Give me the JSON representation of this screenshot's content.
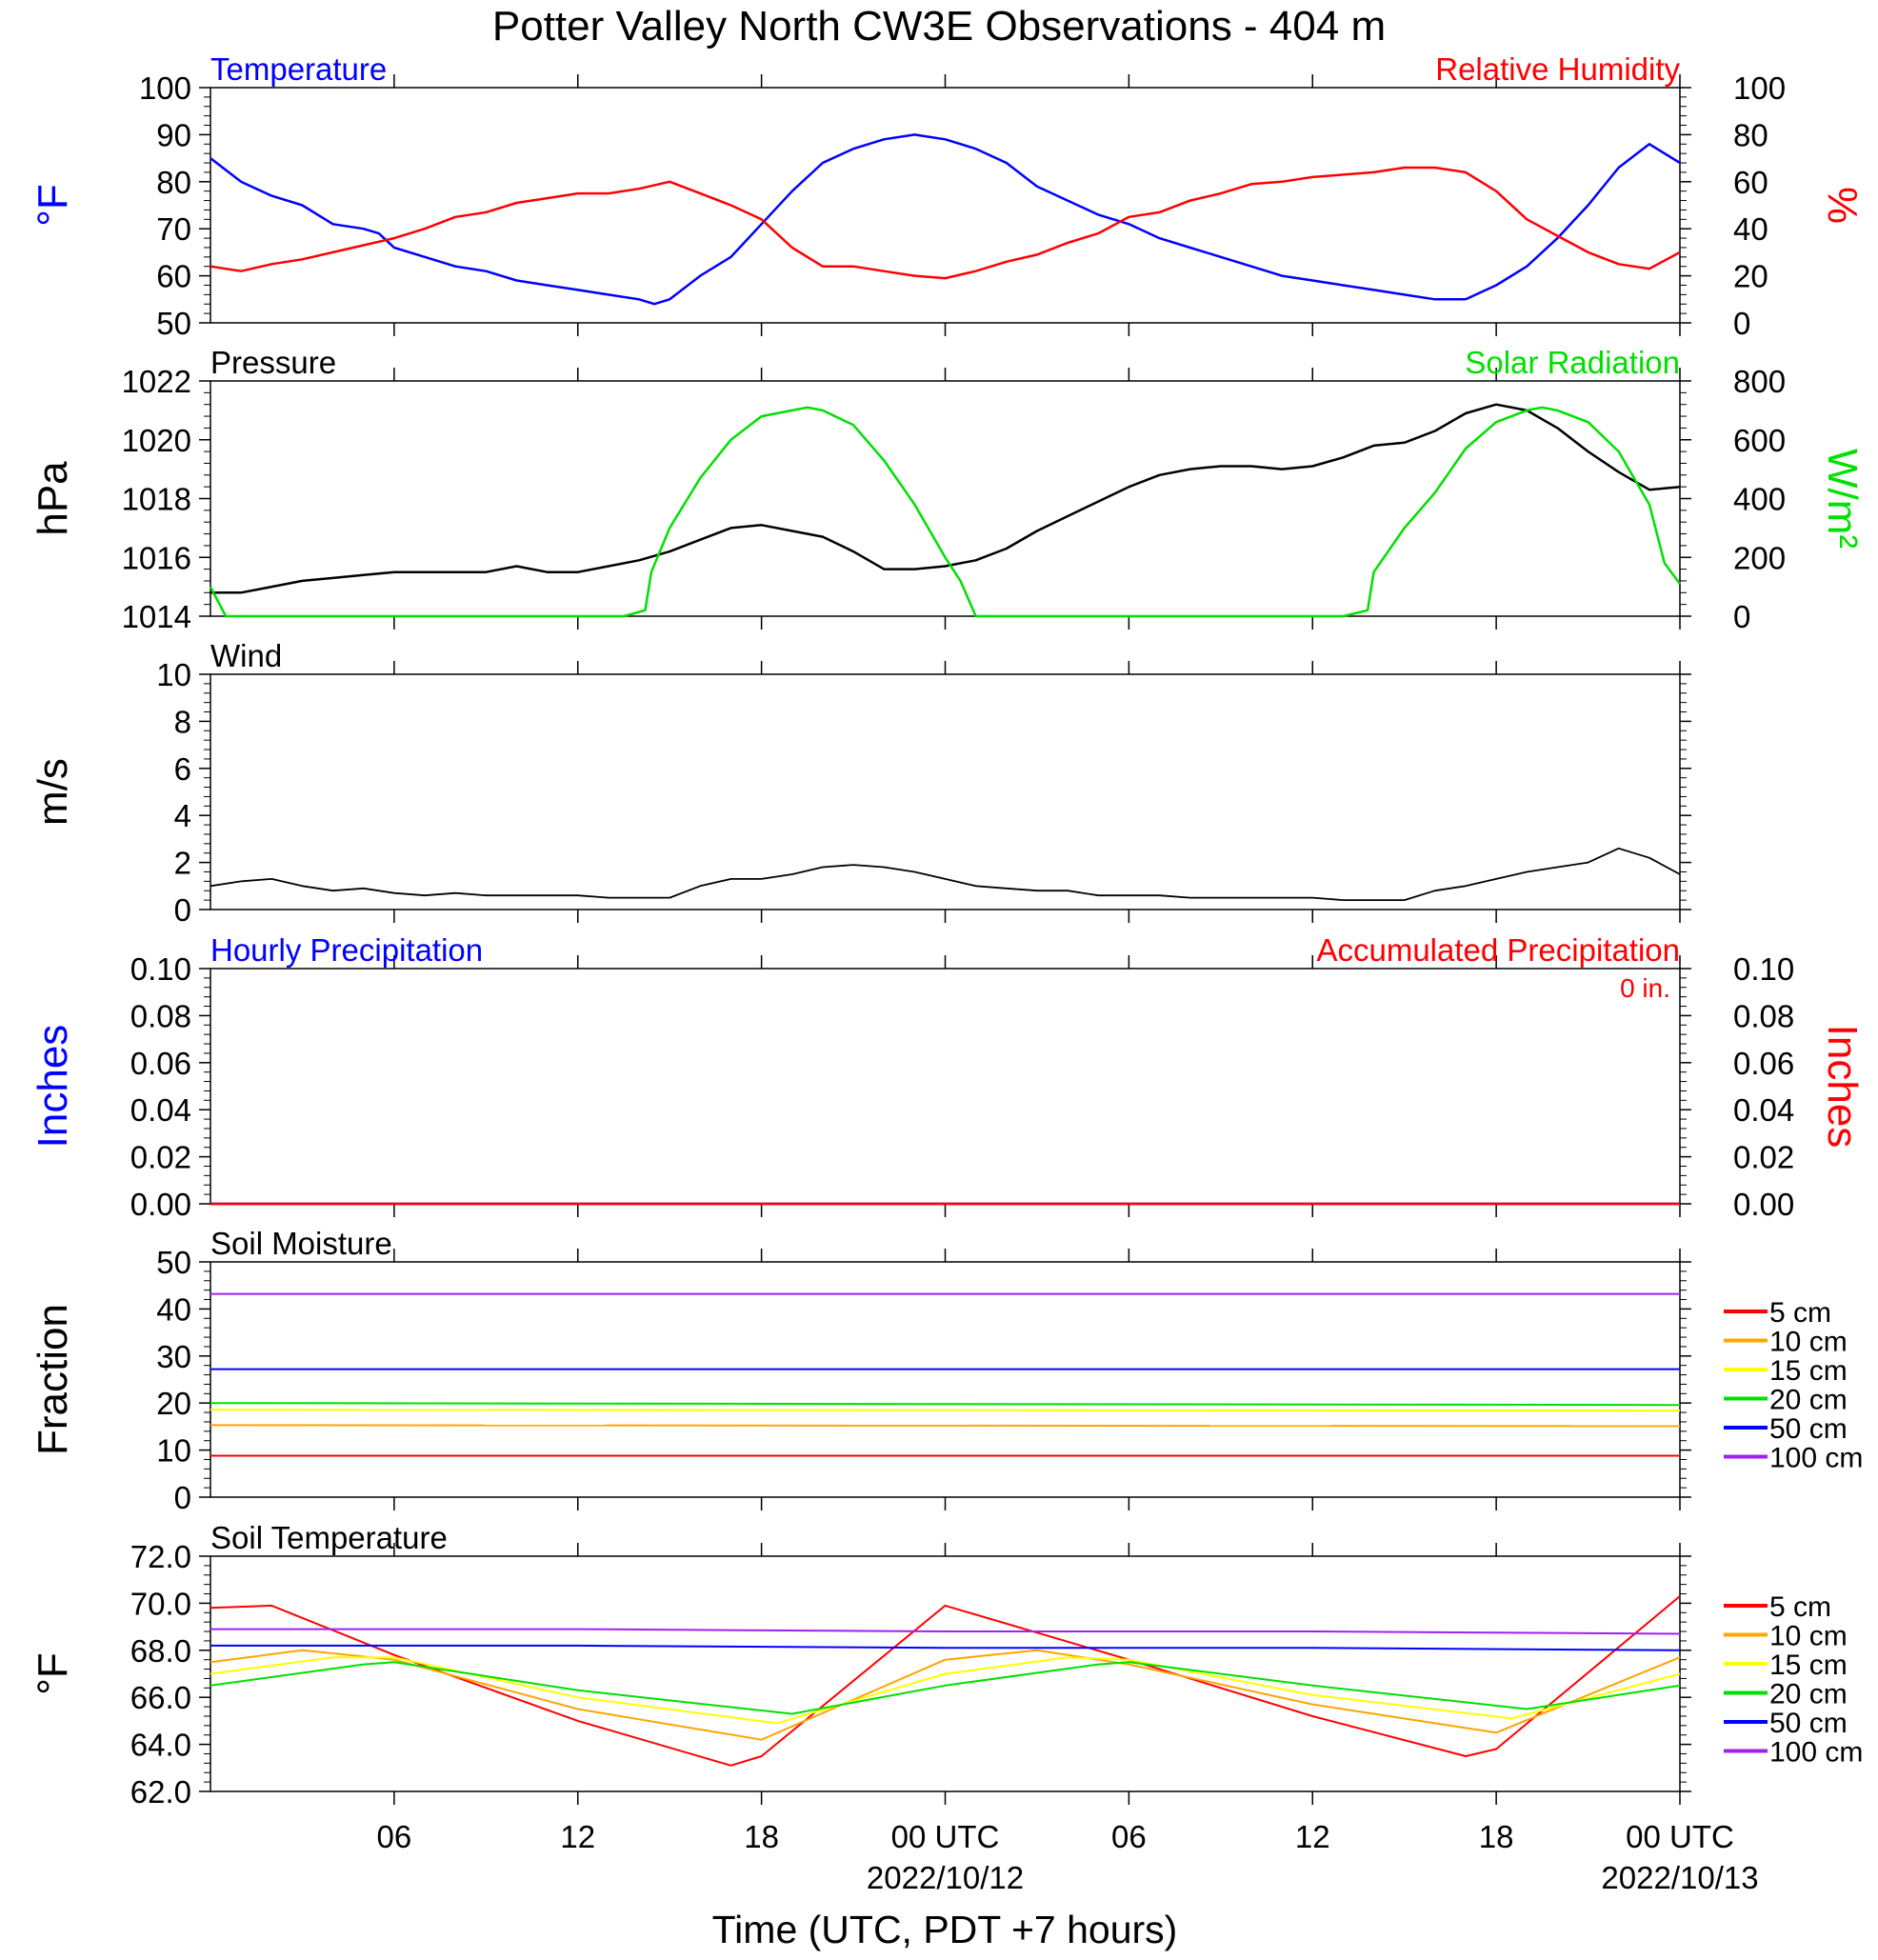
{
  "title": "Potter Valley North CW3E Observations - 404 m",
  "xaxis": {
    "title": "Time (UTC, PDT +7 hours)",
    "ticks": [
      {
        "hour": 6,
        "label": "06",
        "date": ""
      },
      {
        "hour": 12,
        "label": "12",
        "date": ""
      },
      {
        "hour": 18,
        "label": "18",
        "date": ""
      },
      {
        "hour": 24,
        "label": "00 UTC",
        "date": "2022/10/12"
      },
      {
        "hour": 30,
        "label": "06",
        "date": ""
      },
      {
        "hour": 36,
        "label": "12",
        "date": ""
      },
      {
        "hour": 42,
        "label": "18",
        "date": ""
      },
      {
        "hour": 48,
        "label": "00 UTC",
        "date": "2022/10/13"
      }
    ],
    "range_hours": [
      0,
      48
    ]
  },
  "colors": {
    "temperature": "#0000ff",
    "humidity": "#ff0000",
    "pressure": "#000000",
    "solar": "#00e000",
    "wind": "#000000",
    "wind_barb": "#ff0000",
    "hourly_precip": "#0000ff",
    "accum_precip": "#ff0000",
    "depth_5cm": "#ff0000",
    "depth_10cm": "#ffa500",
    "depth_15cm": "#ffff00",
    "depth_20cm": "#00e000",
    "depth_50cm": "#0000ff",
    "depth_100cm": "#a020f0"
  },
  "panels": {
    "temp_rh": {
      "left_title": "Temperature",
      "right_title": "Relative Humidity",
      "left_unit": "°F",
      "right_unit": "%",
      "left_ticks": [
        "50",
        "60",
        "70",
        "80",
        "90",
        "100"
      ],
      "right_ticks": [
        "0",
        "20",
        "40",
        "60",
        "80",
        "100"
      ]
    },
    "pressure_solar": {
      "left_title": "Pressure",
      "right_title": "Solar Radiation",
      "left_unit": "hPa",
      "right_unit": "W/m²",
      "left_ticks": [
        "1014",
        "1016",
        "1018",
        "1020",
        "1022"
      ],
      "right_ticks": [
        "0",
        "200",
        "400",
        "600",
        "800"
      ]
    },
    "wind": {
      "left_title": "Wind",
      "left_unit": "m/s",
      "left_ticks": [
        "0",
        "2",
        "4",
        "6",
        "8",
        "10"
      ]
    },
    "precip": {
      "left_title": "Hourly Precipitation",
      "right_title": "Accumulated Precipitation",
      "total": "0 in.",
      "left_unit": "Inches",
      "right_unit": "Inches",
      "left_ticks": [
        "0.00",
        "0.02",
        "0.04",
        "0.06",
        "0.08",
        "0.10"
      ],
      "right_ticks": [
        "0.00",
        "0.02",
        "0.04",
        "0.06",
        "0.08",
        "0.10"
      ]
    },
    "soil_moisture": {
      "left_title": "Soil Moisture",
      "left_unit": "Fraction",
      "left_ticks": [
        "0",
        "10",
        "20",
        "30",
        "40",
        "50"
      ]
    },
    "soil_temp": {
      "left_title": "Soil Temperature",
      "left_unit": "°F",
      "left_ticks": [
        "62.0",
        "64.0",
        "66.0",
        "68.0",
        "70.0",
        "72.0"
      ]
    }
  },
  "legend_labels": [
    "5 cm",
    "10 cm",
    "15 cm",
    "20 cm",
    "50 cm",
    "100 cm"
  ],
  "chart_data": [
    {
      "type": "line",
      "title": "Temperature",
      "ylabel": "°F",
      "ylim": [
        50,
        100
      ],
      "series": [
        {
          "name": "Temperature",
          "x": [
            0,
            1,
            2,
            3,
            4,
            5,
            5.5,
            6,
            7,
            8,
            9,
            10,
            11,
            12,
            13,
            14,
            14.5,
            15,
            16,
            17,
            18,
            19,
            20,
            21,
            22,
            23,
            24,
            25,
            26,
            27,
            28,
            29,
            30,
            31,
            32,
            33,
            34,
            35,
            36,
            37,
            38,
            39,
            40,
            41,
            42,
            43,
            44,
            45,
            46,
            47,
            48
          ],
          "y": [
            85,
            80,
            77,
            75,
            71,
            70,
            69,
            66,
            64,
            62,
            61,
            59,
            58,
            57,
            56,
            55,
            54,
            55,
            60,
            64,
            71,
            78,
            84,
            87,
            89,
            90,
            89,
            87,
            84,
            79,
            76,
            73,
            71,
            68,
            66,
            64,
            62,
            60,
            59,
            58,
            57,
            56,
            55,
            55,
            58,
            62,
            68,
            75,
            83,
            88,
            84
          ]
        }
      ]
    },
    {
      "type": "line",
      "title": "Relative Humidity",
      "ylabel": "%",
      "ylim": [
        0,
        100
      ],
      "series": [
        {
          "name": "Relative Humidity",
          "x": [
            0,
            1,
            2,
            3,
            4,
            5,
            6,
            7,
            8,
            9,
            10,
            11,
            12,
            13,
            14,
            15,
            16,
            17,
            18,
            19,
            20,
            21,
            22,
            23,
            24,
            25,
            26,
            27,
            28,
            29,
            30,
            31,
            32,
            33,
            34,
            35,
            36,
            37,
            38,
            39,
            40,
            41,
            42,
            43,
            44,
            45,
            46,
            47,
            48
          ],
          "y": [
            24,
            22,
            25,
            27,
            30,
            33,
            36,
            40,
            45,
            47,
            51,
            53,
            55,
            55,
            57,
            60,
            55,
            50,
            44,
            32,
            24,
            24,
            22,
            20,
            19,
            22,
            26,
            29,
            34,
            38,
            45,
            47,
            52,
            55,
            59,
            60,
            62,
            63,
            64,
            66,
            66,
            64,
            56,
            44,
            37,
            30,
            25,
            23,
            30
          ]
        }
      ]
    },
    {
      "type": "line",
      "title": "Pressure",
      "ylabel": "hPa",
      "ylim": [
        1014,
        1022
      ],
      "series": [
        {
          "name": "Pressure",
          "x": [
            0,
            1,
            2,
            3,
            4,
            5,
            6,
            7,
            8,
            9,
            10,
            11,
            12,
            13,
            14,
            15,
            16,
            17,
            18,
            19,
            20,
            21,
            22,
            23,
            24,
            25,
            26,
            27,
            28,
            29,
            30,
            31,
            32,
            33,
            34,
            35,
            36,
            37,
            38,
            39,
            40,
            41,
            42,
            43,
            44,
            45,
            46,
            47,
            48
          ],
          "y": [
            1014.8,
            1014.8,
            1015.0,
            1015.2,
            1015.3,
            1015.4,
            1015.5,
            1015.5,
            1015.5,
            1015.5,
            1015.7,
            1015.5,
            1015.5,
            1015.7,
            1015.9,
            1016.2,
            1016.6,
            1017.0,
            1017.1,
            1016.9,
            1016.7,
            1016.2,
            1015.6,
            1015.6,
            1015.7,
            1015.9,
            1016.3,
            1016.9,
            1017.4,
            1017.9,
            1018.4,
            1018.8,
            1019.0,
            1019.1,
            1019.1,
            1019.0,
            1019.1,
            1019.4,
            1019.8,
            1019.9,
            1020.3,
            1020.9,
            1021.2,
            1021.0,
            1020.4,
            1019.6,
            1018.9,
            1018.3,
            1018.4
          ]
        }
      ]
    },
    {
      "type": "line",
      "title": "Solar Radiation",
      "ylabel": "W/m²",
      "ylim": [
        0,
        800
      ],
      "series": [
        {
          "name": "Solar Radiation",
          "x": [
            0,
            0.2,
            0.5,
            1,
            5,
            10,
            13.5,
            14.2,
            14.4,
            15,
            16,
            17,
            18,
            19,
            19.5,
            20,
            21,
            22,
            23,
            24,
            24.5,
            25,
            30,
            35,
            37,
            37.8,
            38,
            39,
            40,
            41,
            42,
            43,
            43.5,
            44,
            45,
            46,
            47,
            47.5,
            48
          ],
          "y": [
            100,
            60,
            0,
            0,
            0,
            0,
            0,
            20,
            150,
            300,
            470,
            600,
            680,
            700,
            710,
            700,
            650,
            530,
            380,
            200,
            120,
            0,
            0,
            0,
            0,
            20,
            150,
            300,
            420,
            570,
            660,
            700,
            710,
            700,
            660,
            560,
            380,
            180,
            110
          ]
        }
      ]
    },
    {
      "type": "line",
      "title": "Wind",
      "ylabel": "m/s",
      "ylim": [
        0,
        10
      ],
      "series": [
        {
          "name": "Wind",
          "x": [
            0,
            1,
            2,
            3,
            4,
            5,
            6,
            7,
            8,
            9,
            10,
            11,
            12,
            13,
            14,
            15,
            16,
            17,
            18,
            19,
            20,
            21,
            22,
            23,
            24,
            25,
            26,
            27,
            28,
            29,
            30,
            31,
            32,
            33,
            34,
            35,
            36,
            37,
            38,
            39,
            40,
            41,
            42,
            43,
            44,
            45,
            46,
            47,
            48
          ],
          "y": [
            1.0,
            1.2,
            1.3,
            1.0,
            0.8,
            0.9,
            0.7,
            0.6,
            0.7,
            0.6,
            0.6,
            0.6,
            0.6,
            0.5,
            0.5,
            0.5,
            1.0,
            1.3,
            1.3,
            1.5,
            1.8,
            1.9,
            1.8,
            1.6,
            1.3,
            1.0,
            0.9,
            0.8,
            0.8,
            0.6,
            0.6,
            0.6,
            0.5,
            0.5,
            0.5,
            0.5,
            0.5,
            0.4,
            0.4,
            0.4,
            0.8,
            1.0,
            1.3,
            1.6,
            1.8,
            2.0,
            2.6,
            2.2,
            1.5
          ]
        }
      ]
    },
    {
      "type": "line",
      "title": "Hourly Precipitation",
      "ylabel": "Inches",
      "ylim": [
        0,
        0.1
      ],
      "series": [
        {
          "name": "Hourly Precipitation",
          "x": [
            0,
            48
          ],
          "y": [
            0,
            0
          ]
        },
        {
          "name": "Accumulated Precipitation",
          "x": [
            0,
            48
          ],
          "y": [
            0,
            0
          ]
        }
      ]
    },
    {
      "type": "line",
      "title": "Soil Moisture",
      "ylabel": "Fraction",
      "ylim": [
        0,
        50
      ],
      "series": [
        {
          "name": "5 cm",
          "x": [
            0,
            48
          ],
          "y": [
            8.8,
            8.8
          ]
        },
        {
          "name": "10 cm",
          "x": [
            0,
            48
          ],
          "y": [
            15.3,
            15.1
          ]
        },
        {
          "name": "15 cm",
          "x": [
            0,
            48
          ],
          "y": [
            18.6,
            18.4
          ]
        },
        {
          "name": "20 cm",
          "x": [
            0,
            48
          ],
          "y": [
            20.0,
            19.6
          ]
        },
        {
          "name": "50 cm",
          "x": [
            0,
            48
          ],
          "y": [
            27.2,
            27.2
          ]
        },
        {
          "name": "100 cm",
          "x": [
            0,
            48
          ],
          "y": [
            43.2,
            43.2
          ]
        }
      ]
    },
    {
      "type": "line",
      "title": "Soil Temperature",
      "ylabel": "°F",
      "ylim": [
        62,
        72
      ],
      "series": [
        {
          "name": "5 cm",
          "x": [
            0,
            2,
            6,
            12,
            17,
            18,
            24,
            30,
            36,
            41,
            42,
            48
          ],
          "y": [
            69.8,
            69.9,
            67.8,
            65.0,
            63.1,
            63.5,
            69.9,
            67.6,
            65.2,
            63.5,
            63.8,
            70.3
          ]
        },
        {
          "name": "10 cm",
          "x": [
            0,
            3,
            6,
            12,
            18,
            24,
            27,
            30,
            36,
            42,
            48
          ],
          "y": [
            67.5,
            68.0,
            67.6,
            65.5,
            64.2,
            67.6,
            68.0,
            67.4,
            65.7,
            64.5,
            67.7
          ]
        },
        {
          "name": "15 cm",
          "x": [
            0,
            4,
            6,
            12,
            18.5,
            24,
            28,
            30,
            36,
            42.5,
            48
          ],
          "y": [
            67.0,
            67.7,
            67.7,
            66.0,
            64.9,
            67.0,
            67.7,
            67.6,
            66.1,
            65.1,
            67.0
          ]
        },
        {
          "name": "20 cm",
          "x": [
            0,
            5,
            6,
            12,
            19,
            24,
            29,
            30,
            36,
            43,
            48
          ],
          "y": [
            66.5,
            67.4,
            67.5,
            66.3,
            65.3,
            66.5,
            67.4,
            67.5,
            66.5,
            65.5,
            66.5
          ]
        },
        {
          "name": "50 cm",
          "x": [
            0,
            12,
            24,
            36,
            48
          ],
          "y": [
            68.2,
            68.2,
            68.1,
            68.1,
            68.0
          ]
        },
        {
          "name": "100 cm",
          "x": [
            0,
            12,
            24,
            36,
            48
          ],
          "y": [
            68.9,
            68.9,
            68.8,
            68.8,
            68.7
          ]
        }
      ]
    }
  ]
}
